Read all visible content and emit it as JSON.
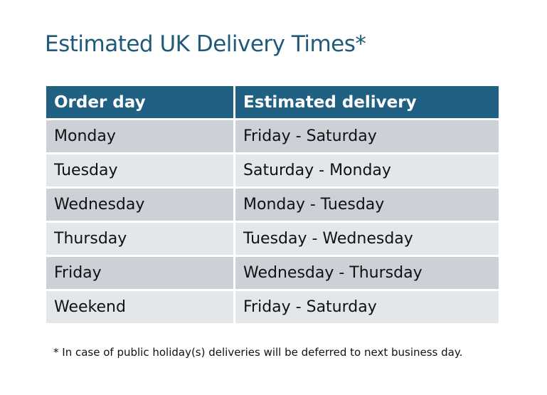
{
  "title": "Estimated UK Delivery Times*",
  "table": {
    "headers": [
      "Order day",
      "Estimated delivery"
    ],
    "rows": [
      [
        "Monday",
        "Friday - Saturday"
      ],
      [
        "Tuesday",
        "Saturday - Monday"
      ],
      [
        "Wednesday",
        "Monday - Tuesday"
      ],
      [
        "Thursday",
        "Tuesday - Wednesday"
      ],
      [
        "Friday",
        "Wednesday - Thursday"
      ],
      [
        "Weekend",
        "Friday - Saturday"
      ]
    ]
  },
  "footnote": "* In case of public holiday(s) deliveries will be deferred to next business day.",
  "colors": {
    "header": "#1f6083",
    "title": "#1f5a7a",
    "row_dark": "#ccd0d7",
    "row_light": "#e4e7ea"
  }
}
